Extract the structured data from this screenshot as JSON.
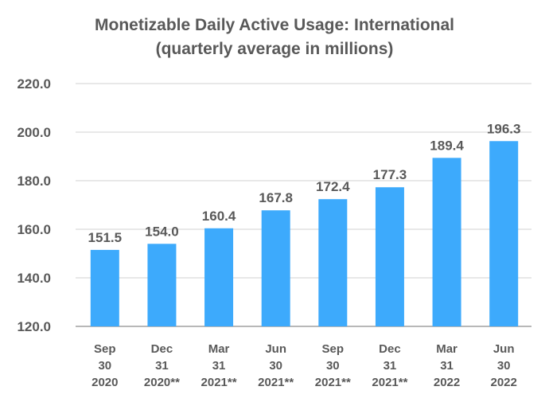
{
  "chart_data": {
    "type": "bar",
    "title": [
      "Monetizable Daily Active Usage: International",
      "(quarterly average in millions)"
    ],
    "categories": [
      [
        "Sep",
        "30",
        "2020"
      ],
      [
        "Dec",
        "31",
        "2020**"
      ],
      [
        "Mar",
        "31",
        "2021**"
      ],
      [
        "Jun",
        "30",
        "2021**"
      ],
      [
        "Sep",
        "30",
        "2021**"
      ],
      [
        "Dec",
        "31",
        "2021**"
      ],
      [
        "Mar",
        "31",
        "2022"
      ],
      [
        "Jun",
        "30",
        "2022"
      ]
    ],
    "values": [
      151.5,
      154.0,
      160.4,
      167.8,
      172.4,
      177.3,
      189.4,
      196.3
    ],
    "data_labels": [
      "151.5",
      "154.0",
      "160.4",
      "167.8",
      "172.4",
      "177.3",
      "189.4",
      "196.3"
    ],
    "ylim": [
      120,
      220
    ],
    "yticks": [
      "120.0",
      "140.0",
      "160.0",
      "180.0",
      "200.0",
      "220.0"
    ],
    "grid": true,
    "colors": {
      "bar": "#3DAAFC",
      "text": "#595959",
      "grid": "#D9D9D9",
      "axis": "#A0A0A0"
    }
  }
}
